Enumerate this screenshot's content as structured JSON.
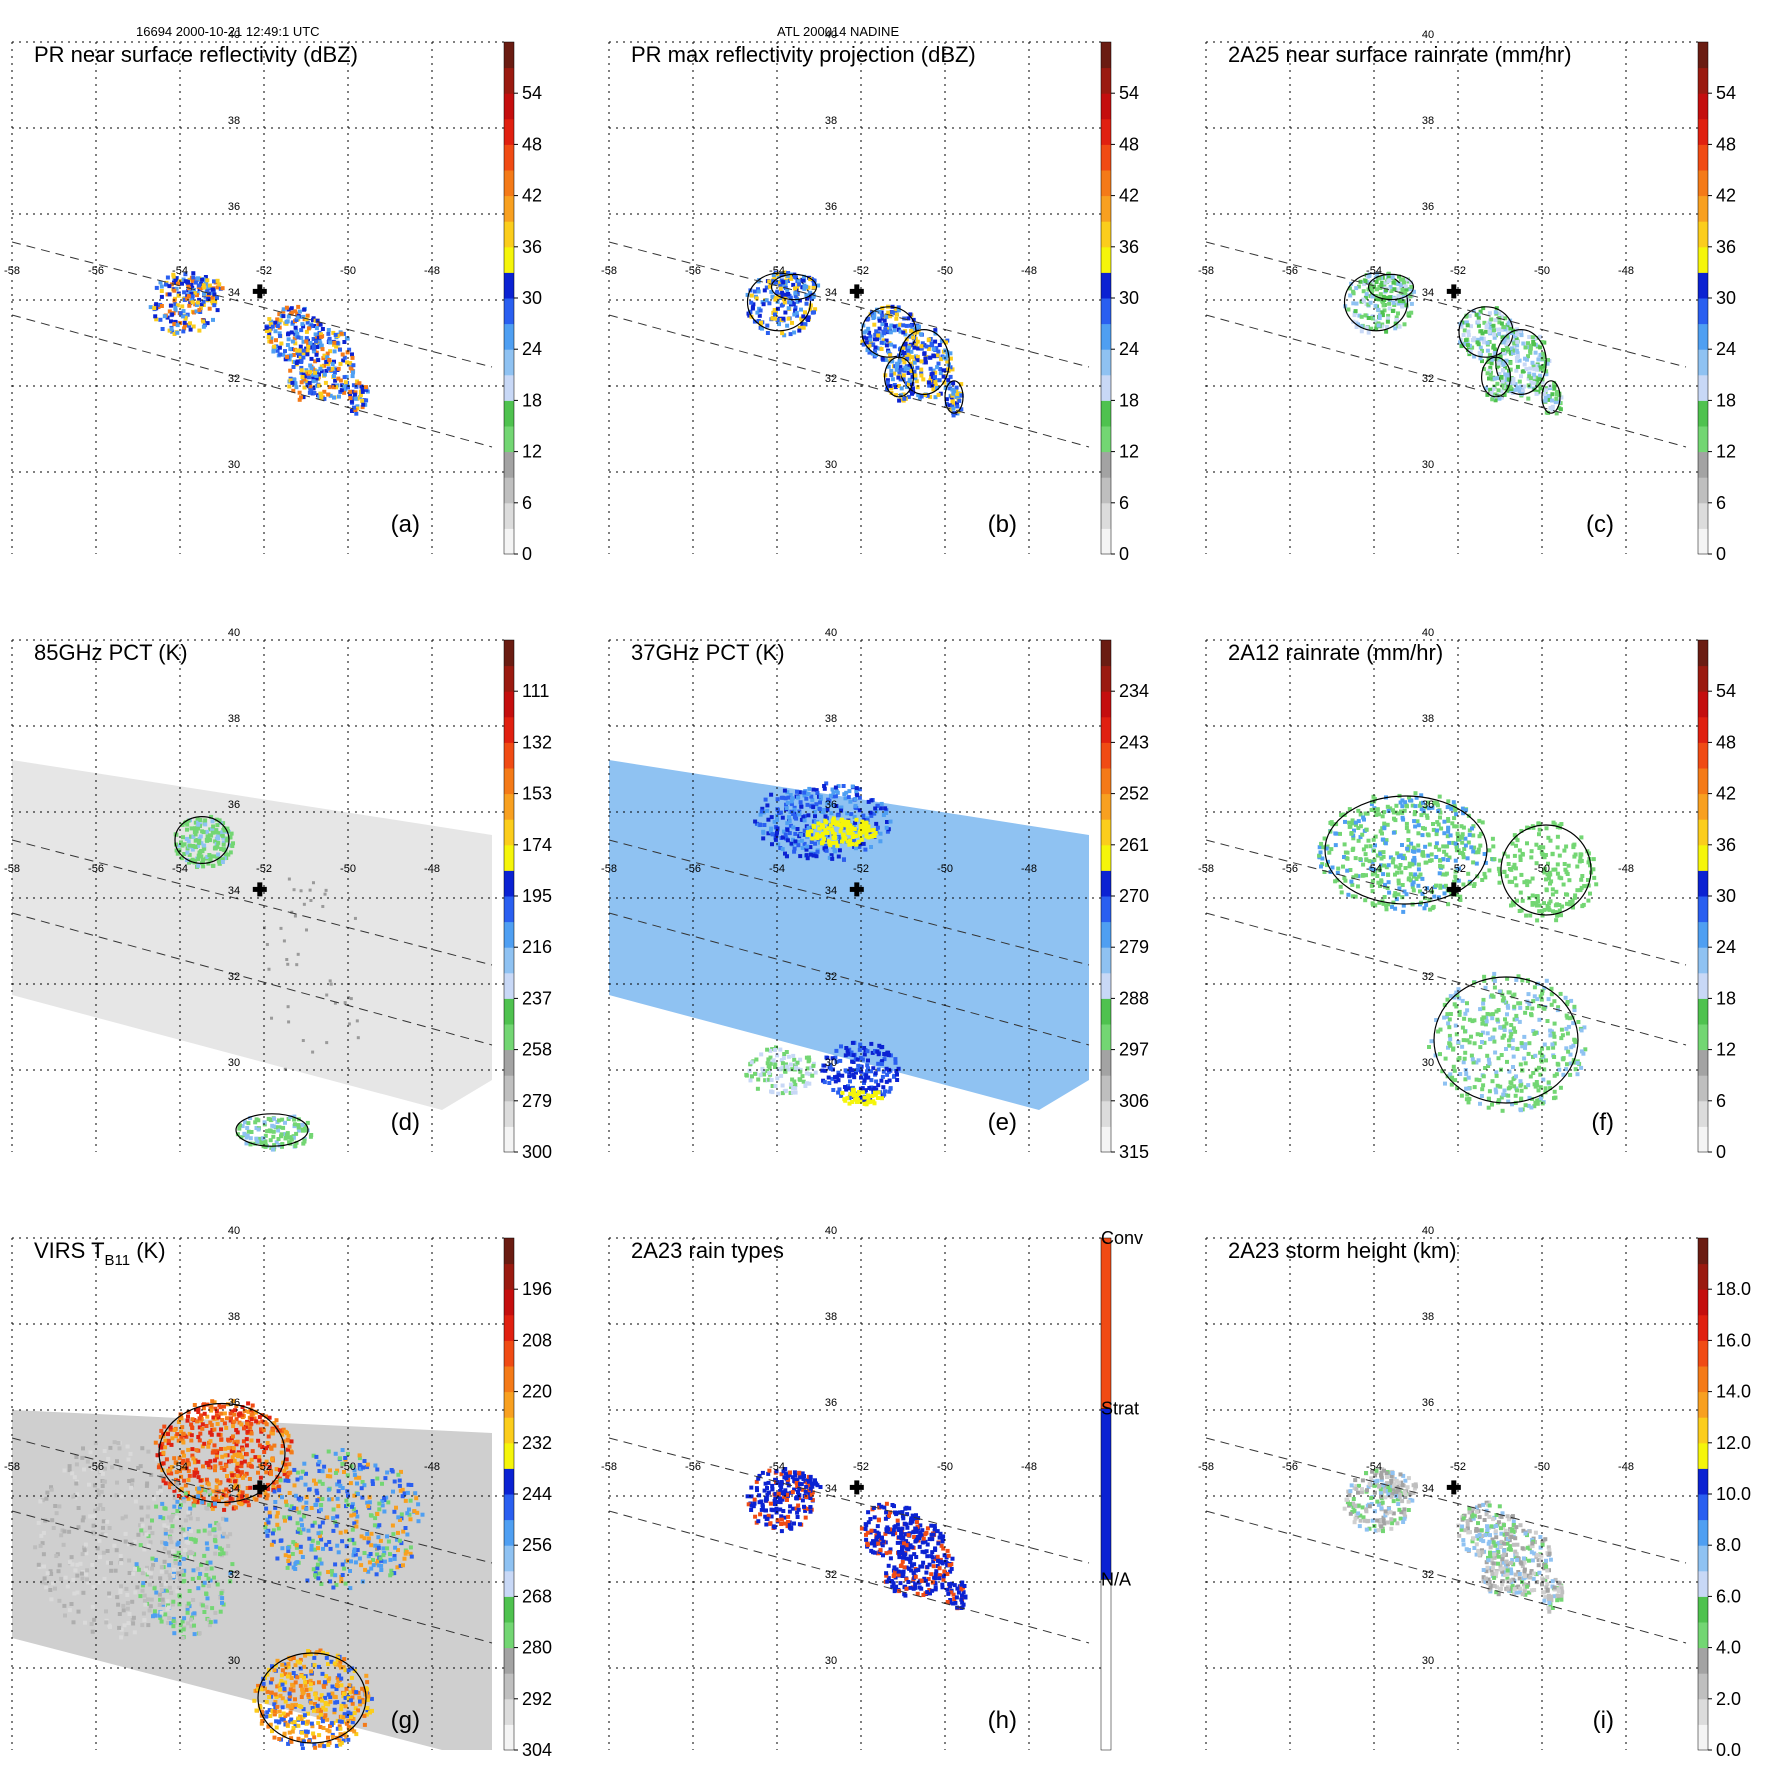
{
  "header": {
    "left": "16694 2000-10-21 12:49:1 UTC",
    "center": "ATL 200014 NADINE"
  },
  "colors": {
    "scale_standard": [
      "#f4f4f4",
      "#dcdcdc",
      "#bfbfbf",
      "#a3a3a3",
      "#73d673",
      "#4fc24f",
      "#c8d8f6",
      "#8fc2f2",
      "#4f9ff2",
      "#2a5ff0",
      "#0b22d2",
      "#f5f50a",
      "#fbcd1c",
      "#f8a020",
      "#f47a18",
      "#f04b14",
      "#e02010",
      "#c40e0e",
      "#9a1a10",
      "#6a1c12"
    ],
    "rain_types": [
      "#ffffff",
      "#0b22d2",
      "#f04b14"
    ],
    "land_green": "#73d673",
    "plane_gray": "#e8e8e8",
    "ir_gray": "#d2d2d2"
  },
  "chart_data": [
    {
      "id": "a",
      "type": "heatmap",
      "title": "PR near surface reflectivity (dBZ)",
      "label": "(a)",
      "colorbar": {
        "ticks": [
          "0",
          "6",
          "12",
          "18",
          "24",
          "30",
          "36",
          "42",
          "48",
          "54"
        ],
        "range": [
          0,
          60
        ]
      },
      "swath": "pr",
      "lat_labels": [
        "40",
        "38",
        "36",
        "34",
        "32",
        "30"
      ],
      "lon_labels": [
        "-58",
        "-56",
        "-54",
        "-52",
        "-50",
        "-48"
      ]
    },
    {
      "id": "b",
      "type": "heatmap",
      "title": "PR max reflectivity projection (dBZ)",
      "label": "(b)",
      "colorbar": {
        "ticks": [
          "0",
          "6",
          "12",
          "18",
          "24",
          "30",
          "36",
          "42",
          "48",
          "54"
        ],
        "range": [
          0,
          60
        ]
      },
      "swath": "pr",
      "lat_labels": [
        "40",
        "38",
        "36",
        "34",
        "32",
        "30"
      ],
      "lon_labels": [
        "-58",
        "-56",
        "-54",
        "-52",
        "-50",
        "-48"
      ]
    },
    {
      "id": "c",
      "type": "heatmap",
      "title": "2A25 near surface rainrate (mm/hr)",
      "label": "(c)",
      "colorbar": {
        "ticks": [
          "0",
          "6",
          "12",
          "18",
          "24",
          "30",
          "36",
          "42",
          "48",
          "54"
        ],
        "range": [
          0,
          60
        ]
      },
      "swath": "pr",
      "lat_labels": [
        "40",
        "38",
        "36",
        "34",
        "32",
        "30"
      ],
      "lon_labels": [
        "-58",
        "-56",
        "-54",
        "-52",
        "-50",
        "-48"
      ]
    },
    {
      "id": "d",
      "type": "heatmap",
      "title": "85GHz PCT (K)",
      "label": "(d)",
      "colorbar": {
        "ticks": [
          "300",
          "279",
          "258",
          "237",
          "216",
          "195",
          "174",
          "153",
          "132",
          "111"
        ],
        "range": [
          300,
          90
        ]
      },
      "swath": "tmi",
      "lat_labels": [
        "40",
        "38",
        "36",
        "34",
        "32",
        "30"
      ],
      "lon_labels": [
        "-58",
        "-56",
        "-54",
        "-52",
        "-50",
        "-48"
      ]
    },
    {
      "id": "e",
      "type": "heatmap",
      "title": "37GHz PCT (K)",
      "label": "(e)",
      "colorbar": {
        "ticks": [
          "315",
          "306",
          "297",
          "288",
          "279",
          "270",
          "261",
          "252",
          "243",
          "234"
        ],
        "range": [
          315,
          225
        ]
      },
      "swath": "tmi",
      "lat_labels": [
        "40",
        "38",
        "36",
        "34",
        "32",
        "30"
      ],
      "lon_labels": [
        "-58",
        "-56",
        "-54",
        "-52",
        "-50",
        "-48"
      ]
    },
    {
      "id": "f",
      "type": "heatmap",
      "title": "2A12 rainrate (mm/hr)",
      "label": "(f)",
      "colorbar": {
        "ticks": [
          "0",
          "6",
          "12",
          "18",
          "24",
          "30",
          "36",
          "42",
          "48",
          "54"
        ],
        "range": [
          0,
          60
        ]
      },
      "swath": "tmi",
      "lat_labels": [
        "40",
        "38",
        "36",
        "34",
        "32",
        "30"
      ],
      "lon_labels": [
        "-58",
        "-56",
        "-54",
        "-52",
        "-50",
        "-48"
      ]
    },
    {
      "id": "g",
      "type": "heatmap",
      "title_main": "VIRS T",
      "title_sub": "B11",
      "title_unit": " (K)",
      "label": "(g)",
      "colorbar": {
        "ticks": [
          "304",
          "292",
          "280",
          "268",
          "256",
          "244",
          "232",
          "220",
          "208",
          "196"
        ],
        "range": [
          304,
          184
        ]
      },
      "swath": "virs",
      "lat_labels": [
        "40",
        "38",
        "36",
        "34",
        "32",
        "30"
      ],
      "lon_labels": [
        "-58",
        "-56",
        "-54",
        "-52",
        "-50",
        "-48"
      ]
    },
    {
      "id": "h",
      "type": "heatmap",
      "title": "2A23 rain types",
      "label": "(h)",
      "colorbar": {
        "ticks": [
          "N/A",
          "Strat",
          "Conv"
        ],
        "categorical": true
      },
      "swath": "pr",
      "lat_labels": [
        "40",
        "38",
        "36",
        "34",
        "32",
        "30"
      ],
      "lon_labels": [
        "-58",
        "-56",
        "-54",
        "-52",
        "-50",
        "-48"
      ]
    },
    {
      "id": "i",
      "type": "heatmap",
      "title": "2A23 storm height (km)",
      "label": "(i)",
      "colorbar": {
        "ticks": [
          "0.0",
          "2.0",
          "4.0",
          "6.0",
          "8.0",
          "10.0",
          "12.0",
          "14.0",
          "16.0",
          "18.0"
        ],
        "range": [
          0,
          20
        ]
      },
      "swath": "pr",
      "lat_labels": [
        "40",
        "38",
        "36",
        "34",
        "32",
        "30"
      ],
      "lon_labels": [
        "-58",
        "-56",
        "-54",
        "-52",
        "-50",
        "-48"
      ]
    }
  ]
}
